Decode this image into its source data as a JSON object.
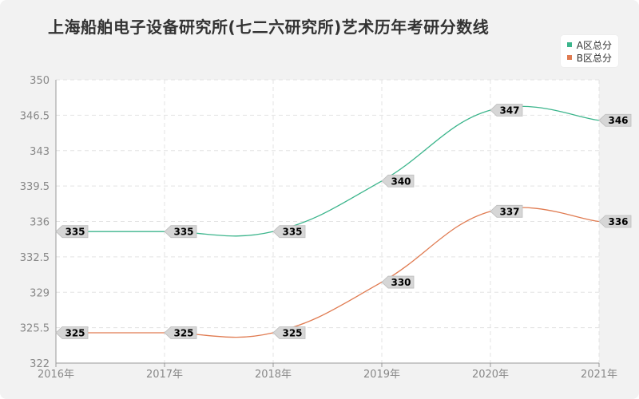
{
  "chart_data": {
    "type": "line",
    "title": "上海船舶电子设备研究所(七二六研究所)艺术历年考研分数线",
    "categories": [
      "2016年",
      "2017年",
      "2018年",
      "2019年",
      "2020年",
      "2021年"
    ],
    "series": [
      {
        "name": "A区总分",
        "color": "#3cb58c",
        "values": [
          335,
          335,
          335,
          340,
          347,
          346
        ]
      },
      {
        "name": "B区总分",
        "color": "#e07b51",
        "values": [
          325,
          325,
          325,
          330,
          337,
          336
        ]
      }
    ],
    "ylim": [
      322,
      350
    ],
    "yticks": [
      "322",
      "325.5",
      "329",
      "332.5",
      "336",
      "339.5",
      "343",
      "346.5",
      "350"
    ],
    "grid": true,
    "legend_position": "top-right"
  }
}
